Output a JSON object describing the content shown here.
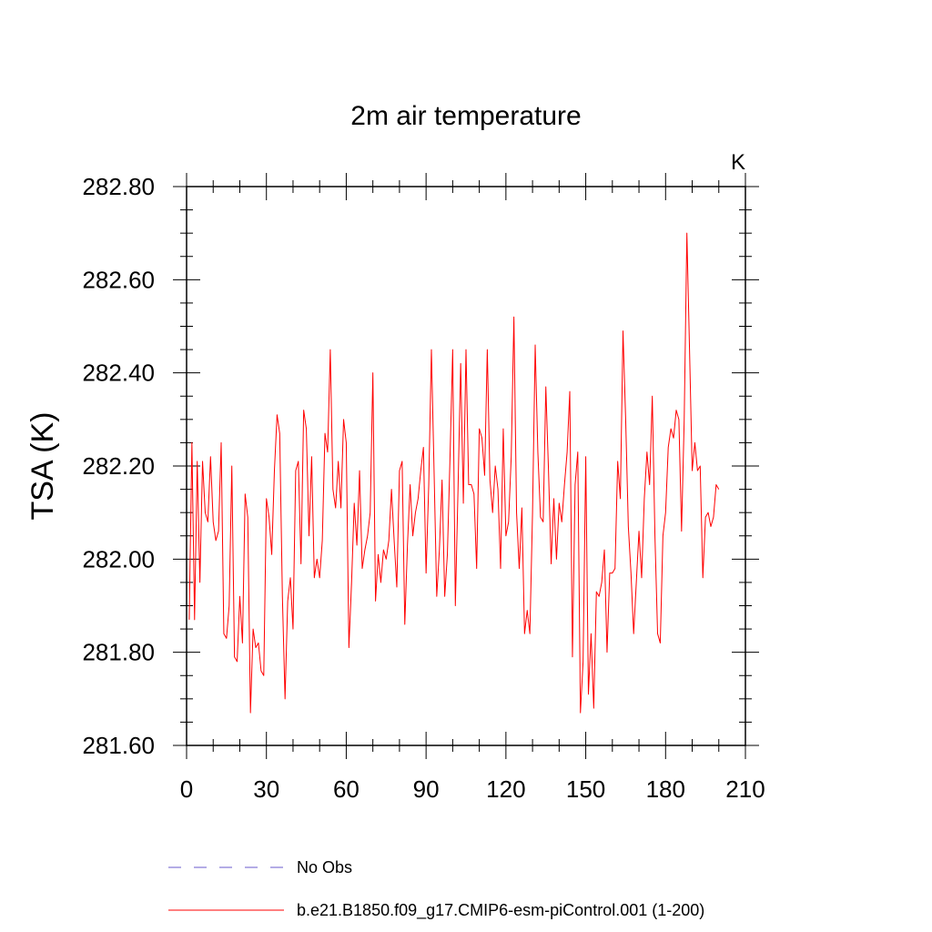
{
  "chart_data": {
    "type": "line",
    "title": "2m air temperature",
    "units_label": "K",
    "xlabel": "",
    "ylabel": "TSA  (K)",
    "xlim": [
      0,
      210
    ],
    "ylim": [
      281.6,
      282.8
    ],
    "xticks": [
      0,
      30,
      60,
      90,
      120,
      150,
      180,
      210
    ],
    "yticks": [
      281.6,
      281.8,
      282.0,
      282.2,
      282.4,
      282.6,
      282.8
    ],
    "xtick_labels": [
      "0",
      "30",
      "60",
      "90",
      "120",
      "150",
      "180",
      "210"
    ],
    "ytick_labels": [
      "281.60",
      "281.80",
      "282.00",
      "282.20",
      "282.40",
      "282.60",
      "282.80"
    ],
    "legend": [
      {
        "label": "No Obs",
        "color": "#6a5acd",
        "style": "dashed"
      },
      {
        "label": "b.e21.B1850.f09_g17.CMIP6-esm-piControl.001 (1-200)",
        "color": "#ff0000",
        "style": "solid"
      }
    ],
    "series": [
      {
        "name": "b.e21.B1850.f09_g17.CMIP6-esm-piControl.001 (1-200)",
        "color": "#ff0000",
        "x_start": 1,
        "x_step": 1,
        "values": [
          281.87,
          282.25,
          281.87,
          282.21,
          281.95,
          282.21,
          282.1,
          282.08,
          282.22,
          282.08,
          282.04,
          282.06,
          282.25,
          281.84,
          281.83,
          281.9,
          282.2,
          281.79,
          281.78,
          281.92,
          281.82,
          282.14,
          282.09,
          281.67,
          281.85,
          281.81,
          281.82,
          281.76,
          281.75,
          282.13,
          282.09,
          282.01,
          282.19,
          282.31,
          282.27,
          281.92,
          281.7,
          281.91,
          281.96,
          281.85,
          282.19,
          282.21,
          281.99,
          282.32,
          282.28,
          282.05,
          282.22,
          281.96,
          282.0,
          281.96,
          282.04,
          282.27,
          282.23,
          282.45,
          282.15,
          282.11,
          282.21,
          282.11,
          282.3,
          282.25,
          281.81,
          281.95,
          282.12,
          282.03,
          282.19,
          281.98,
          282.02,
          282.05,
          282.1,
          282.4,
          281.91,
          282.01,
          281.95,
          282.02,
          282.0,
          282.04,
          282.15,
          282.04,
          281.94,
          282.19,
          282.21,
          281.86,
          282.03,
          282.16,
          282.05,
          282.1,
          282.13,
          282.19,
          282.24,
          281.97,
          282.16,
          282.45,
          282.19,
          281.92,
          282.02,
          282.17,
          281.92,
          282.01,
          282.22,
          282.45,
          281.9,
          282.15,
          282.42,
          282.12,
          282.45,
          282.16,
          282.16,
          282.14,
          281.98,
          282.28,
          282.26,
          282.18,
          282.45,
          282.17,
          282.1,
          282.2,
          282.15,
          281.98,
          282.28,
          282.05,
          282.08,
          282.22,
          282.52,
          282.1,
          281.98,
          282.11,
          281.84,
          281.89,
          281.84,
          282.1,
          282.46,
          282.23,
          282.09,
          282.08,
          282.37,
          282.19,
          281.99,
          282.13,
          282.0,
          282.12,
          282.08,
          282.16,
          282.23,
          282.36,
          281.79,
          282.16,
          282.23,
          281.67,
          281.78,
          282.22,
          281.71,
          281.84,
          281.68,
          281.93,
          281.92,
          281.95,
          282.02,
          281.8,
          281.97,
          281.97,
          281.98,
          282.21,
          282.13,
          282.49,
          282.3,
          282.07,
          281.97,
          281.84,
          281.95,
          282.06,
          281.96,
          282.13,
          282.23,
          282.16,
          282.35,
          282.05,
          281.84,
          281.82,
          282.05,
          282.1,
          282.24,
          282.28,
          282.26,
          282.32,
          282.3,
          282.06,
          282.3,
          282.7,
          282.45,
          282.19,
          282.25,
          282.19,
          282.2,
          281.96,
          282.09,
          282.1,
          282.07,
          282.09,
          282.16,
          282.15
        ]
      }
    ]
  }
}
